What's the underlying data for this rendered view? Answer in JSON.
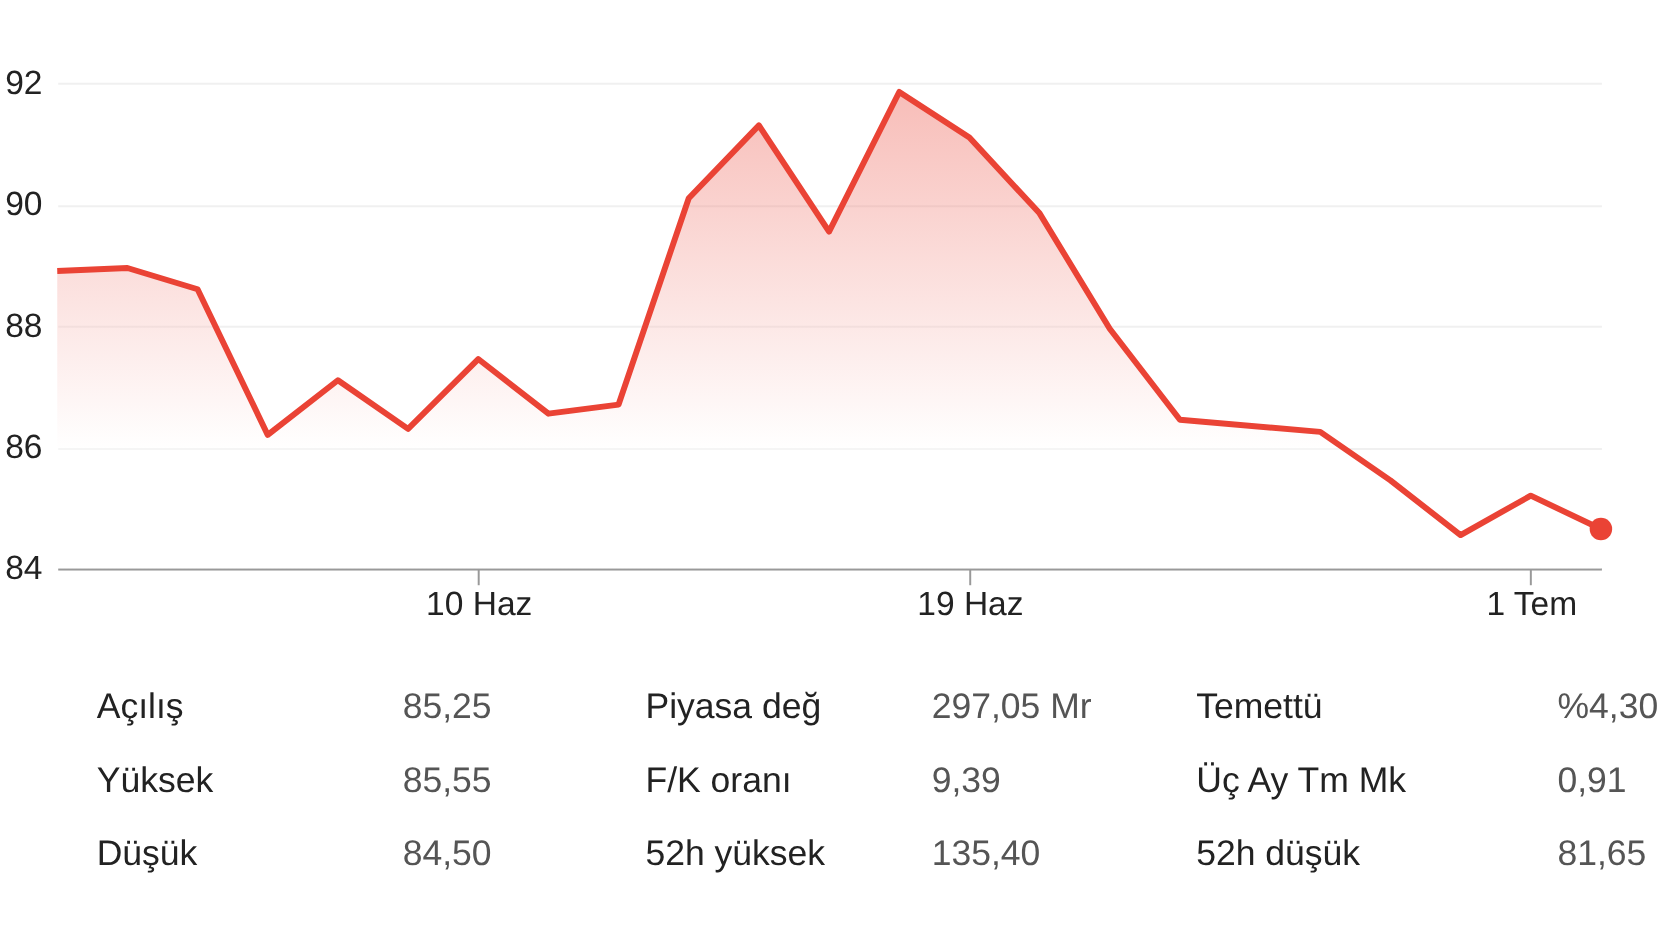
{
  "chart_data": [
    {
      "type": "area",
      "categories": [
        null,
        null,
        null,
        null,
        null,
        null,
        "10 Haz",
        null,
        null,
        null,
        null,
        null,
        null,
        "19 Haz",
        null,
        null,
        null,
        null,
        null,
        null,
        null,
        "1 Tem",
        null
      ],
      "series": [
        {
          "type": "area",
          "color": "#ea4335",
          "values": [
            88.9,
            88.95,
            88.6,
            86.2,
            87.1,
            86.3,
            87.45,
            86.55,
            86.7,
            90.1,
            91.3,
            89.55,
            91.85,
            91.1,
            89.85,
            87.95,
            86.45,
            null,
            86.25,
            85.45,
            84.55,
            85.2,
            84.65
          ]
        },
        {
          "type": "scatter",
          "color": "#ea4335",
          "marker": "circle",
          "values": [
            null,
            null,
            null,
            null,
            null,
            null,
            null,
            null,
            null,
            null,
            null,
            null,
            null,
            null,
            null,
            null,
            null,
            null,
            null,
            null,
            null,
            null,
            84.65
          ]
        }
      ],
      "ylim": [
        84,
        92
      ],
      "yticks": [
        84,
        86,
        88,
        90,
        92
      ],
      "grid": "y"
    },
    {
      "type": "other",
      "annotations": [
        "Açılış",
        "85,25",
        "Piyasa değ",
        "297,05 Mr",
        "Temettü",
        "%4,30",
        "Yüksek",
        "85,55",
        "F/K oranı",
        "9,39",
        "Üç Ay Tm Mk",
        "0,91",
        "Düşük",
        "84,50",
        "52h yüksek",
        "135,40",
        "52h düşük",
        "81,65"
      ]
    }
  ]
}
